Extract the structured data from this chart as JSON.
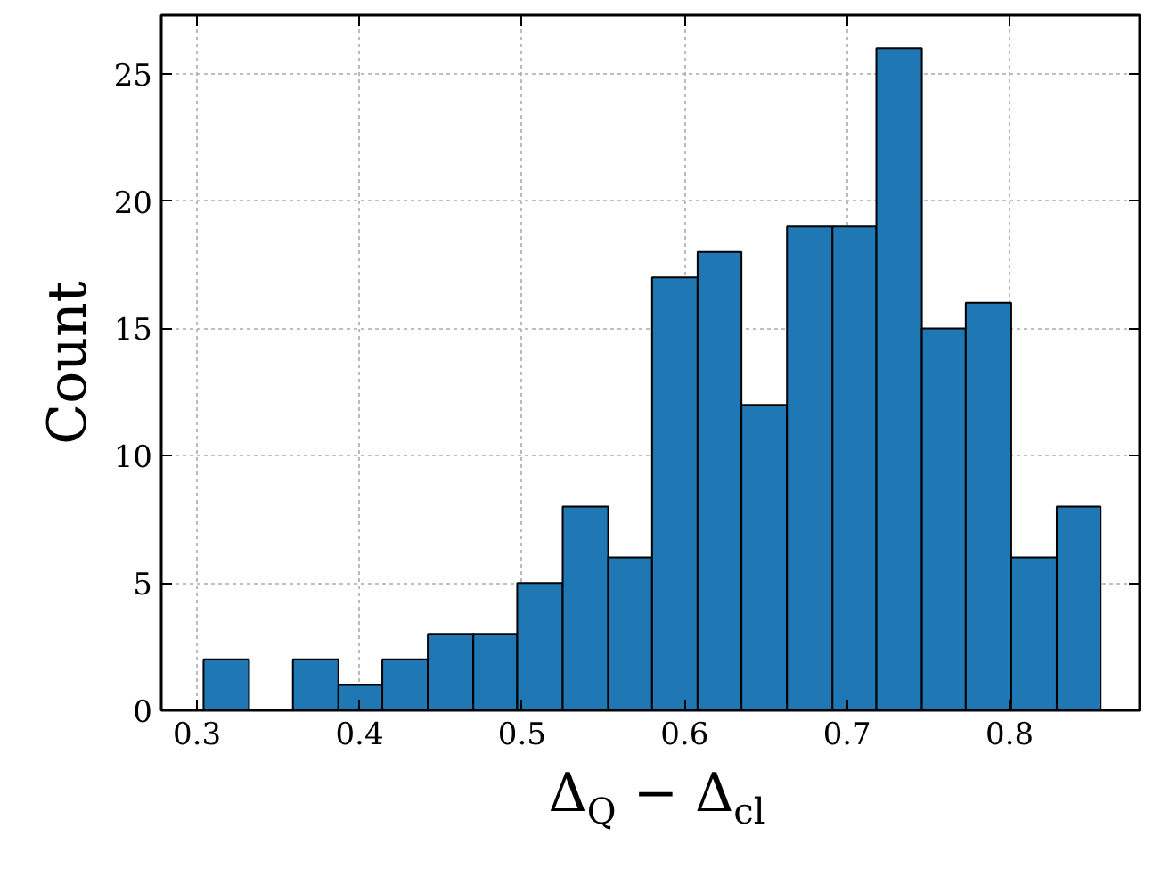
{
  "chart_data": {
    "type": "histogram",
    "xlabel": "Δ$_{Q}$ − Δ$_{cl}$",
    "ylabel": "Count",
    "bins": [
      0.304,
      0.332,
      0.359,
      0.387,
      0.414,
      0.442,
      0.47,
      0.497,
      0.525,
      0.553,
      0.58,
      0.608,
      0.635,
      0.663,
      0.691,
      0.718,
      0.746,
      0.773,
      0.801,
      0.829,
      0.856
    ],
    "values": [
      2,
      0,
      2,
      1,
      2,
      3,
      3,
      5,
      8,
      6,
      17,
      18,
      12,
      19,
      19,
      26,
      15,
      16,
      6,
      8
    ],
    "color": "#1f77b4",
    "xlim": [
      0.278,
      0.88
    ],
    "xticks": [
      0.3,
      0.4,
      0.5,
      0.6,
      0.7,
      0.8
    ],
    "ylim": [
      0,
      27.3
    ],
    "yticks": [
      0,
      5,
      10,
      15,
      20,
      25
    ],
    "grid": true
  }
}
